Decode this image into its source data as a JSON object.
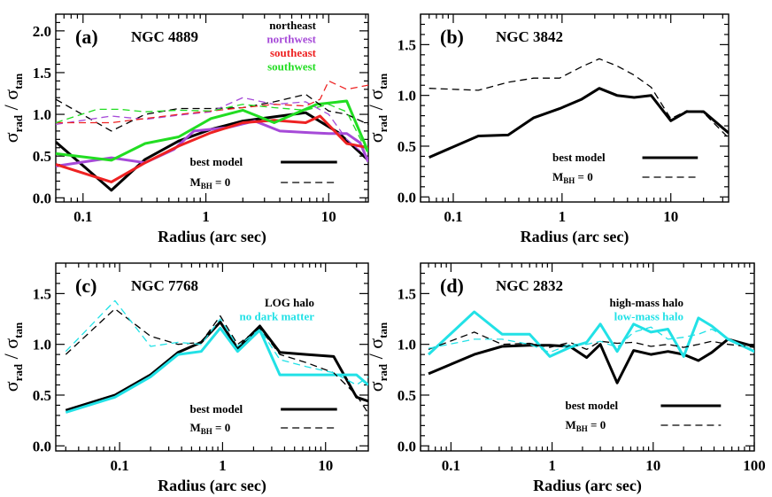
{
  "x_axis_label": "Radius  (arc sec)",
  "y_axis_label": {
    "sigma": "σ",
    "rad": "rad",
    "slash": " / ",
    "tan": "tan"
  },
  "model_legend": {
    "best": "best model",
    "mbh_prefix": "M",
    "mbh_sub": "BH",
    "mbh_suffix": " = 0"
  },
  "chart_data": [
    {
      "type": "line",
      "panel": "(a)",
      "title": "NGC 4889",
      "xscale": "log",
      "xlim": [
        0.06,
        21
      ],
      "ylim": [
        -0.05,
        2.2
      ],
      "xticks": [
        0.1,
        1,
        10
      ],
      "xtick_labels": [
        "0.1",
        "1",
        "10"
      ],
      "yticks": [
        0.0,
        0.5,
        1.0,
        1.5,
        2.0
      ],
      "ytick_labels": [
        "0.0",
        "0.5",
        "1.0",
        "1.5",
        "2.0"
      ],
      "legend": [
        {
          "label": "northeast",
          "color": "#000000"
        },
        {
          "label": "northwest",
          "color": "#a64ad8"
        },
        {
          "label": "southeast",
          "color": "#ee2222"
        },
        {
          "label": "southwest",
          "color": "#22dd22"
        }
      ],
      "series": [
        {
          "name": "northeast",
          "style": "solid",
          "color": "#000000",
          "x": [
            0.06,
            0.17,
            0.32,
            0.6,
            1.1,
            2.0,
            3.6,
            6.5,
            12,
            21
          ],
          "y": [
            0.67,
            0.09,
            0.46,
            0.68,
            0.82,
            0.92,
            0.97,
            1.02,
            0.78,
            0.45
          ]
        },
        {
          "name": "northwest",
          "style": "solid",
          "color": "#a64ad8",
          "x": [
            0.06,
            0.17,
            0.32,
            0.55,
            0.8,
            1.5,
            2.5,
            4.0,
            7.0,
            10,
            14,
            18,
            21
          ],
          "y": [
            0.38,
            0.48,
            0.42,
            0.58,
            0.8,
            0.84,
            0.92,
            0.8,
            0.78,
            0.77,
            0.77,
            0.66,
            0.43
          ]
        },
        {
          "name": "southeast",
          "style": "solid",
          "color": "#ee2222",
          "x": [
            0.06,
            0.17,
            0.32,
            0.6,
            1.1,
            2.0,
            3.6,
            6.5,
            8.5,
            14,
            21
          ],
          "y": [
            0.4,
            0.19,
            0.42,
            0.62,
            0.78,
            0.9,
            0.93,
            0.9,
            0.98,
            0.65,
            0.6
          ]
        },
        {
          "name": "southwest",
          "style": "solid",
          "color": "#22dd22",
          "x": [
            0.06,
            0.17,
            0.32,
            0.6,
            1.1,
            2.0,
            3.6,
            8.0,
            14,
            21
          ],
          "y": [
            0.53,
            0.45,
            0.65,
            0.73,
            0.95,
            1.05,
            0.9,
            1.12,
            1.16,
            0.55
          ]
        },
        {
          "name": "northeast",
          "style": "dashed",
          "color": "#000000",
          "x": [
            0.06,
            0.17,
            0.32,
            0.6,
            1.1,
            2.0,
            3.6,
            6.5,
            10,
            14,
            21
          ],
          "y": [
            1.18,
            0.8,
            1.0,
            1.07,
            1.07,
            1.08,
            1.15,
            1.24,
            1.04,
            1.0,
            0.88
          ]
        },
        {
          "name": "northwest",
          "style": "dashed",
          "color": "#a64ad8",
          "x": [
            0.06,
            0.17,
            0.32,
            0.6,
            1.1,
            2.0,
            3.6,
            6.5,
            10,
            14,
            21
          ],
          "y": [
            0.88,
            0.98,
            0.94,
            0.99,
            1.03,
            1.2,
            1.12,
            1.15,
            1.0,
            0.7,
            0.48
          ]
        },
        {
          "name": "southeast",
          "style": "dashed",
          "color": "#ee2222",
          "x": [
            0.06,
            0.17,
            0.32,
            0.6,
            1.1,
            2.0,
            3.6,
            6.5,
            8.5,
            10,
            14,
            21
          ],
          "y": [
            0.9,
            0.9,
            0.95,
            1.0,
            1.04,
            1.08,
            1.12,
            1.1,
            1.18,
            1.4,
            1.3,
            1.35
          ]
        },
        {
          "name": "southwest",
          "style": "dashed",
          "color": "#22dd22",
          "x": [
            0.06,
            0.13,
            0.2,
            0.32,
            0.6,
            1.1,
            2.0,
            3.6,
            6.5,
            10,
            14,
            21
          ],
          "y": [
            0.9,
            1.06,
            1.06,
            1.03,
            1.05,
            1.04,
            1.12,
            1.08,
            1.05,
            1.12,
            1.03,
            0.52
          ]
        }
      ]
    },
    {
      "type": "line",
      "panel": "(b)",
      "title": "NGC 3842",
      "xscale": "log",
      "xlim": [
        0.05,
        34
      ],
      "ylim": [
        -0.05,
        1.8
      ],
      "xticks": [
        0.1,
        1,
        10
      ],
      "xtick_labels": [
        "0.1",
        "1",
        "10"
      ],
      "yticks": [
        0.0,
        0.5,
        1.0,
        1.5
      ],
      "ytick_labels": [
        "0.0",
        "0.5",
        "1.0",
        "1.5"
      ],
      "legend": [],
      "series": [
        {
          "name": "best model",
          "style": "solid",
          "color": "#000000",
          "x": [
            0.06,
            0.17,
            0.32,
            0.55,
            0.95,
            1.5,
            2.2,
            3.2,
            4.6,
            6.6,
            10,
            14,
            20,
            34
          ],
          "y": [
            0.39,
            0.6,
            0.61,
            0.78,
            0.87,
            0.96,
            1.07,
            1.0,
            0.98,
            1.0,
            0.75,
            0.84,
            0.84,
            0.63
          ]
        },
        {
          "name": "M_BH = 0",
          "style": "dashed",
          "color": "#000000",
          "x": [
            0.06,
            0.17,
            0.32,
            0.55,
            0.95,
            1.5,
            2.2,
            3.2,
            4.6,
            6.6,
            10,
            14,
            20,
            34
          ],
          "y": [
            1.07,
            1.05,
            1.13,
            1.17,
            1.17,
            1.28,
            1.36,
            1.29,
            1.2,
            1.08,
            0.77,
            0.85,
            0.83,
            0.58
          ]
        }
      ]
    },
    {
      "type": "line",
      "panel": "(c)",
      "title": "NGC 7768",
      "xscale": "log",
      "xlim": [
        0.024,
        26
      ],
      "ylim": [
        -0.05,
        1.8
      ],
      "xticks": [
        0.1,
        1,
        10
      ],
      "xtick_labels": [
        "0.1",
        "1",
        "10"
      ],
      "yticks": [
        0.0,
        0.5,
        1.0,
        1.5
      ],
      "ytick_labels": [
        "0.0",
        "0.5",
        "1.0",
        "1.5"
      ],
      "legend": [
        {
          "label": "LOG halo",
          "color": "#000000"
        },
        {
          "label": "no dark matter",
          "color": "#22e1e6"
        }
      ],
      "series": [
        {
          "name": "LOG halo",
          "style": "solid",
          "color": "#000000",
          "x": [
            0.03,
            0.09,
            0.2,
            0.37,
            0.62,
            0.95,
            1.4,
            2.3,
            3.6,
            6.5,
            12,
            20,
            26
          ],
          "y": [
            0.35,
            0.5,
            0.7,
            0.92,
            1.02,
            1.22,
            0.96,
            1.18,
            0.92,
            0.9,
            0.88,
            0.48,
            0.44
          ]
        },
        {
          "name": "no dark matter",
          "style": "solid",
          "color": "#22e1e6",
          "x": [
            0.03,
            0.09,
            0.2,
            0.37,
            0.62,
            0.95,
            1.4,
            2.3,
            3.6,
            6.5,
            12,
            20,
            26
          ],
          "y": [
            0.33,
            0.48,
            0.68,
            0.9,
            0.93,
            1.16,
            0.93,
            1.14,
            0.7,
            0.7,
            0.7,
            0.7,
            0.6
          ]
        },
        {
          "name": "LOG halo",
          "style": "dashed",
          "color": "#000000",
          "x": [
            0.03,
            0.09,
            0.2,
            0.37,
            0.62,
            0.95,
            1.4,
            2.3,
            3.6,
            6.5,
            12,
            20,
            26
          ],
          "y": [
            0.9,
            1.35,
            1.08,
            1.0,
            1.02,
            1.28,
            1.0,
            1.16,
            0.9,
            0.82,
            0.72,
            0.5,
            0.32
          ]
        },
        {
          "name": "no dark matter",
          "style": "dashed",
          "color": "#22e1e6",
          "x": [
            0.03,
            0.09,
            0.2,
            0.37,
            0.62,
            0.95,
            1.4,
            2.3,
            3.6,
            6.5,
            12,
            20,
            26
          ],
          "y": [
            0.93,
            1.43,
            0.98,
            1.02,
            1.0,
            1.25,
            0.98,
            1.15,
            0.85,
            0.78,
            0.72,
            0.6,
            0.68
          ]
        }
      ]
    },
    {
      "type": "line",
      "panel": "(d)",
      "title": "NGC 2832",
      "xscale": "log",
      "xlim": [
        0.05,
        100
      ],
      "ylim": [
        -0.05,
        1.8
      ],
      "xticks": [
        0.1,
        1,
        10,
        100
      ],
      "xtick_labels": [
        "0.1",
        "1",
        "10",
        "100"
      ],
      "yticks": [
        0.0,
        0.5,
        1.0,
        1.5
      ],
      "ytick_labels": [
        "0.0",
        "0.5",
        "1.0",
        "1.5"
      ],
      "legend": [
        {
          "label": "high-mass halo",
          "color": "#000000"
        },
        {
          "label": "low-mass halo",
          "color": "#22e1e6"
        }
      ],
      "series": [
        {
          "name": "high-mass halo",
          "style": "solid",
          "color": "#000000",
          "x": [
            0.06,
            0.17,
            0.32,
            0.6,
            0.95,
            1.5,
            2.2,
            3.0,
            4.4,
            6.4,
            9.5,
            14,
            20,
            28,
            38,
            55,
            100
          ],
          "y": [
            0.71,
            0.9,
            0.98,
            0.99,
            0.99,
            0.98,
            0.87,
            1.0,
            0.62,
            0.94,
            0.9,
            0.93,
            0.9,
            0.84,
            0.92,
            1.05,
            0.98
          ]
        },
        {
          "name": "low-mass halo",
          "style": "solid",
          "color": "#22e1e6",
          "x": [
            0.06,
            0.17,
            0.32,
            0.6,
            0.95,
            1.5,
            2.2,
            3.0,
            4.4,
            6.4,
            9.5,
            14,
            20,
            28,
            38,
            55,
            100
          ],
          "y": [
            0.9,
            1.32,
            1.1,
            1.1,
            0.88,
            0.97,
            1.02,
            1.2,
            0.93,
            1.2,
            1.12,
            1.15,
            0.88,
            1.26,
            1.18,
            1.05,
            0.93
          ]
        },
        {
          "name": "high-mass halo",
          "style": "dashed",
          "color": "#000000",
          "x": [
            0.06,
            0.17,
            0.32,
            0.6,
            0.95,
            1.5,
            2.2,
            3.0,
            4.4,
            6.4,
            9.5,
            14,
            20,
            28,
            38,
            55,
            100
          ],
          "y": [
            0.95,
            1.12,
            1.0,
            1.01,
            0.97,
            1.02,
            0.95,
            1.03,
            1.01,
            1.02,
            0.98,
            1.0,
            0.97,
            1.0,
            1.03,
            1.0,
            0.97
          ]
        },
        {
          "name": "low-mass halo",
          "style": "dashed",
          "color": "#22e1e6",
          "x": [
            0.06,
            0.17,
            0.32,
            0.6,
            0.95,
            1.5,
            2.2,
            3.0,
            4.4,
            6.4,
            9.5,
            14,
            20,
            28,
            38,
            55,
            100
          ],
          "y": [
            0.96,
            1.05,
            1.05,
            1.0,
            0.92,
            1.0,
            1.0,
            1.03,
            0.97,
            1.12,
            1.17,
            1.05,
            1.07,
            1.1,
            1.15,
            1.06,
            0.92
          ]
        }
      ]
    }
  ]
}
